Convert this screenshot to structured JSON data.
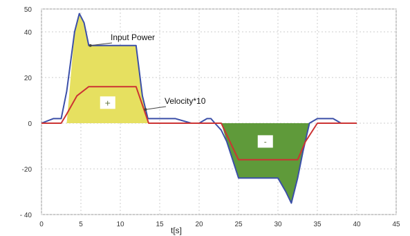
{
  "chart_data": {
    "type": "line",
    "xlabel": "t[s]",
    "ylabel": "",
    "xlim": [
      0,
      45
    ],
    "ylim": [
      -40,
      50
    ],
    "grid": true,
    "x_ticks": [
      0,
      5,
      10,
      15,
      20,
      25,
      30,
      35,
      40,
      45
    ],
    "x_tick_labels": [
      "0",
      "5",
      "10",
      "15",
      "20",
      "25",
      "30",
      "35",
      "40",
      "45"
    ],
    "y_ticks": [
      -40,
      -20,
      0,
      20,
      40,
      50
    ],
    "y_tick_labels": [
      "- 40",
      "-20",
      "0",
      "20",
      "40",
      "50"
    ],
    "series": [
      {
        "name": "Input Power",
        "color": "#3b4fa8",
        "x": [
          0,
          1.5,
          2.5,
          3.2,
          4.2,
          4.8,
          5.4,
          6.0,
          6.6,
          8.0,
          10.0,
          11.0,
          12.0,
          12.8,
          13.5,
          15,
          17,
          19,
          20,
          21,
          21.5,
          22,
          22.8,
          23.5,
          25.0,
          28.0,
          30.0,
          31.0,
          31.7,
          32.5,
          33.2,
          34.0,
          35.0,
          36.0,
          37.0,
          38.0,
          39.0,
          40.0
        ],
        "y": [
          0,
          2,
          2,
          14,
          40,
          48,
          44,
          34,
          34,
          34,
          34,
          34,
          34,
          12,
          2,
          2,
          2,
          0,
          0,
          2,
          2,
          0,
          -3,
          -8,
          -24,
          -24,
          -24,
          -30,
          -35,
          -24,
          -12,
          0,
          2,
          2,
          2,
          0,
          0,
          0
        ]
      },
      {
        "name": "Velocity*10",
        "color": "#cc3333",
        "x": [
          0,
          2.5,
          3.2,
          4.5,
          6.0,
          8.0,
          12.0,
          12.8,
          13.6,
          15,
          20,
          22.8,
          25.0,
          28.0,
          31.0,
          32.5,
          33.5,
          35,
          40
        ],
        "y": [
          0,
          0,
          4,
          12,
          16,
          16,
          16,
          8,
          0,
          0,
          0,
          0,
          -16,
          -16,
          -16,
          -16,
          -8,
          0,
          0
        ]
      }
    ],
    "regions": [
      {
        "sign": "+",
        "color": "#e6e060",
        "x": [
          3.2,
          4.2,
          4.8,
          5.4,
          6.0,
          6.6,
          8.0,
          10.0,
          12.0,
          12.8,
          13.5,
          13.6
        ],
        "y": [
          0,
          40,
          48,
          44,
          34,
          34,
          34,
          34,
          34,
          12,
          2,
          0
        ]
      },
      {
        "sign": "-",
        "color": "#5f9a3a",
        "x": [
          22.8,
          23.5,
          25.0,
          28.0,
          30.0,
          31.0,
          31.7,
          32.5,
          33.2,
          34.0
        ],
        "y": [
          0,
          -8,
          -24,
          -24,
          -24,
          -30,
          -35,
          -24,
          -12,
          0
        ]
      }
    ],
    "annotations": [
      {
        "text": "Input Power",
        "target_x": 6.2,
        "target_y": 34
      },
      {
        "text": "Velocity*10",
        "target_x": 13.2,
        "target_y": 6
      }
    ]
  }
}
